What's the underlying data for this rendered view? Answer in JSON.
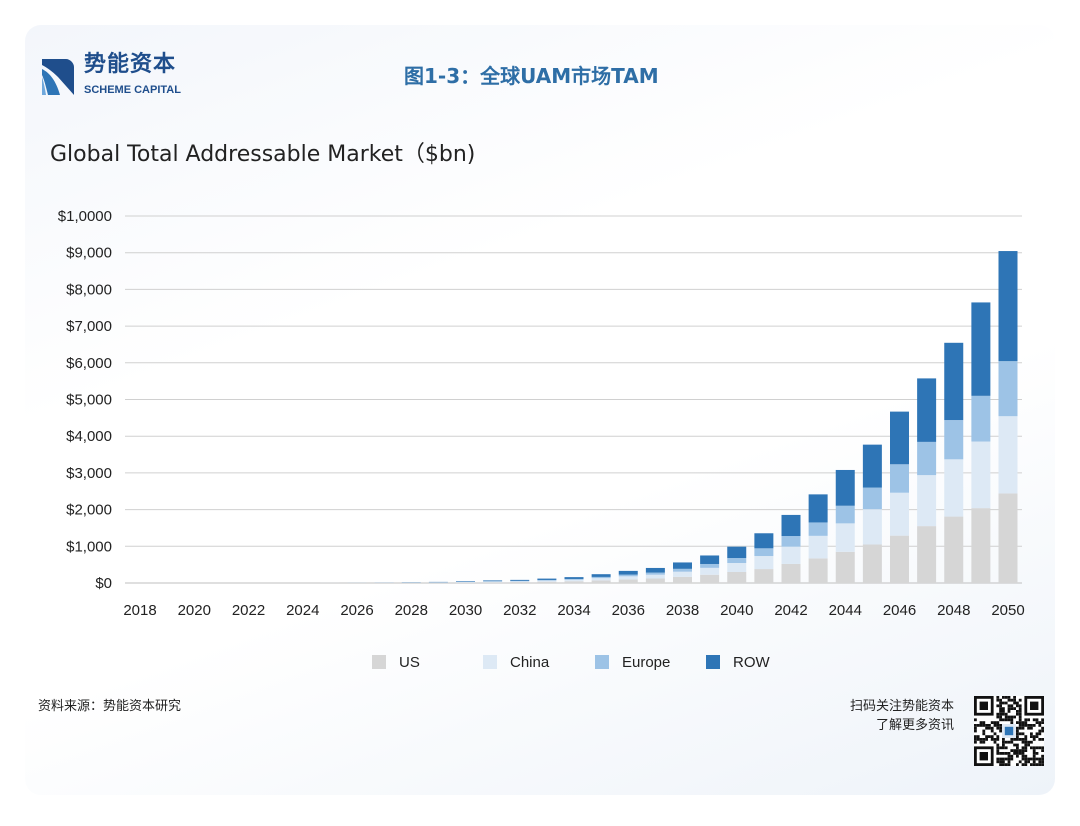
{
  "header": {
    "brand_cn": "势能资本",
    "brand_en": "SCHEME CAPITAL",
    "figure_title": "图1-3：全球UAM市场TAM"
  },
  "footer": {
    "source": "资料来源：势能资本研究",
    "qr_line1": "扫码关注势能资本",
    "qr_line2": "了解更多资讯"
  },
  "chart_data": {
    "type": "bar",
    "stacked": true,
    "title": "Global Total Addressable Market（$bn)",
    "xlabel": "",
    "ylabel": "",
    "ylim": [
      0,
      10000
    ],
    "grid": true,
    "legend": "bottom",
    "y_ticks": [
      {
        "value": 10000,
        "label": "$1,0000"
      },
      {
        "value": 9000,
        "label": "$9,000"
      },
      {
        "value": 8000,
        "label": "$8,000"
      },
      {
        "value": 7000,
        "label": "$7,000"
      },
      {
        "value": 6000,
        "label": "$6,000"
      },
      {
        "value": 5000,
        "label": "$5,000"
      },
      {
        "value": 4000,
        "label": "$4,000"
      },
      {
        "value": 3000,
        "label": "$3,000"
      },
      {
        "value": 2000,
        "label": "$2,000"
      },
      {
        "value": 1000,
        "label": "$1,000"
      },
      {
        "value": 0,
        "label": "$0"
      }
    ],
    "x_tick_labels": [
      "2018",
      "2020",
      "2022",
      "2024",
      "2026",
      "2028",
      "2030",
      "2032",
      "2034",
      "2036",
      "2038",
      "2040",
      "2042",
      "2044",
      "2046",
      "2048",
      "2050"
    ],
    "categories": [
      "2018",
      "2019",
      "2020",
      "2021",
      "2022",
      "2023",
      "2024",
      "2025",
      "2026",
      "2027",
      "2028",
      "2029",
      "2030",
      "2031",
      "2032",
      "2033",
      "2034",
      "2035",
      "2036",
      "2037",
      "2038",
      "2039",
      "2040",
      "2041",
      "2042",
      "2043",
      "2044",
      "2045",
      "2046",
      "2047",
      "2048",
      "2049",
      "2050"
    ],
    "series": [
      {
        "name": "US",
        "color": "#d6d6d6",
        "values": [
          0,
          0,
          0,
          0,
          0,
          0,
          0,
          1,
          2,
          3,
          6,
          9,
          15,
          21,
          26,
          36,
          48,
          72,
          99,
          123,
          168,
          225,
          300,
          380,
          520,
          670,
          850,
          1050,
          1290,
          1550,
          1810,
          2040,
          2440
        ]
      },
      {
        "name": "China",
        "color": "#dde9f5",
        "values": [
          0,
          0,
          0,
          0,
          0,
          0,
          0,
          1,
          1,
          3,
          5,
          8,
          12,
          18,
          21,
          30,
          40,
          60,
          83,
          103,
          140,
          188,
          245,
          355,
          470,
          615,
          775,
          960,
          1170,
          1390,
          1560,
          1815,
          2105
        ]
      },
      {
        "name": "Europe",
        "color": "#9dc3e6",
        "values": [
          0,
          0,
          0,
          0,
          0,
          0,
          0,
          0,
          1,
          1,
          3,
          4,
          8,
          10,
          12,
          17,
          22,
          34,
          46,
          57,
          78,
          105,
          135,
          210,
          290,
          365,
          480,
          590,
          775,
          905,
          1070,
          1245,
          1500
        ]
      },
      {
        "name": "ROW",
        "color": "#2e75b6",
        "values": [
          0,
          0,
          0,
          0,
          0,
          0,
          0,
          0,
          1,
          3,
          6,
          9,
          15,
          21,
          26,
          37,
          50,
          74,
          102,
          127,
          174,
          232,
          310,
          410,
          575,
          765,
          975,
          1170,
          1435,
          1730,
          2105,
          2545,
          3000
        ]
      }
    ]
  }
}
